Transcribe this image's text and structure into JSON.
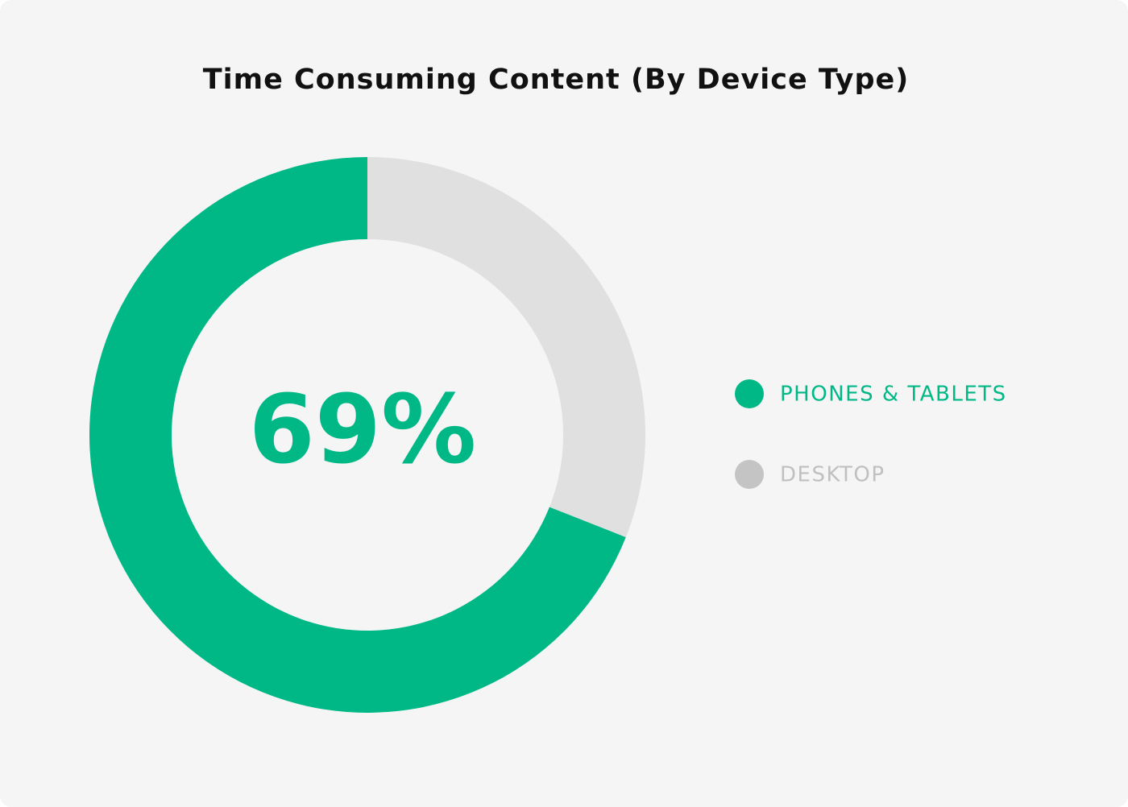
{
  "chart_data": {
    "type": "pie",
    "title": "Time Consuming Content (By Device Type)",
    "categories": [
      "PHONES & TABLETS",
      "DESKTOP"
    ],
    "values": [
      69,
      31
    ],
    "value_labels": [
      "69%",
      null
    ],
    "colors": [
      "#00b886",
      "#e0e0e0"
    ],
    "legend_colors": [
      "#00b886",
      "#c4c4c4"
    ],
    "legend_text_colors": [
      "#00b886",
      "#c0c0c0"
    ],
    "legend": "right"
  }
}
